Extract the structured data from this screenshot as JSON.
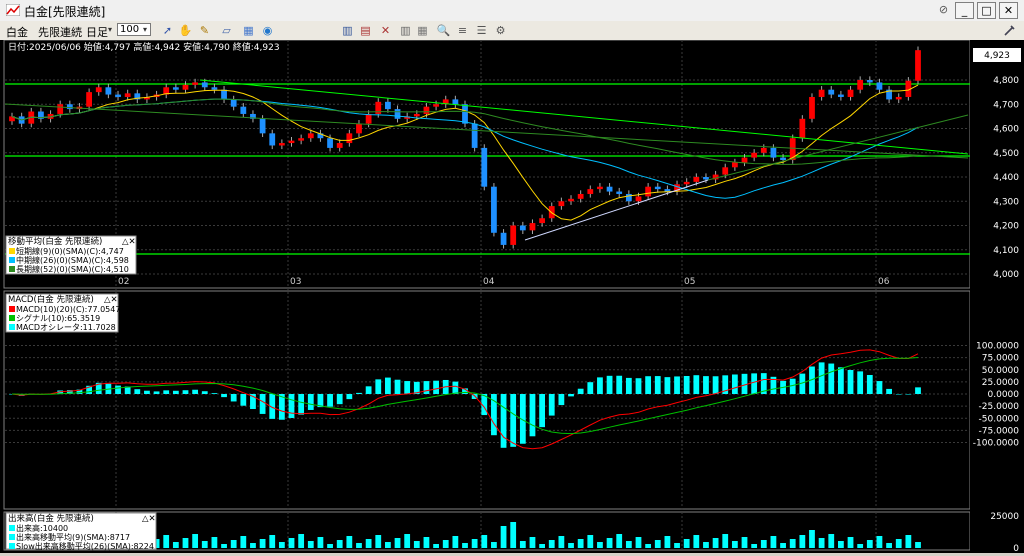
{
  "window": {
    "title": "白金[先限連続]",
    "buttons": {
      "pin": "⊘",
      "minimize": "_",
      "maximize": "□",
      "close": "✕"
    }
  },
  "toolbar": {
    "menus": [
      "白金",
      "先限連続",
      "日足"
    ],
    "zoom_value": "100",
    "icons": [
      "cursor-icon",
      "hand-icon",
      "pencil-icon",
      "eraser-icon",
      "grid-icon",
      "globe-icon",
      "bar-chart-icon",
      "candle-icon",
      "cross-icon",
      "list-icon",
      "table-icon",
      "magnify-icon",
      "rows-icon",
      "cols-icon",
      "settings-icon"
    ]
  },
  "price_panel": {
    "info": "日付:2025/06/06  始値:4,797  高値:4,942  安値:4,790  終値:4,923",
    "last_price": "4,923",
    "y_labels": [
      "4,800",
      "4,700",
      "4,600",
      "4,500",
      "4,400",
      "4,300",
      "4,200",
      "4,100",
      "4,000"
    ],
    "x_labels": [
      "02",
      "03",
      "04",
      "05",
      "06"
    ],
    "legend_title": "移動平均(白金 先限連続)",
    "legend_items": [
      "短期線(9)(0)(SMA)(C):4,747",
      "中期線(26)(0)(SMA)(C):4,598",
      "長期線(52)(0)(SMA)(C):4,510"
    ]
  },
  "macd_panel": {
    "legend_title": "MACD(白金 先限連続)",
    "legend_items": [
      "MACD(10)(20)(C):77.0547",
      "シグナル(10):65.3519",
      "MACDオシレータ:11.7028"
    ],
    "y_labels": [
      "100.0000",
      "75.0000",
      "50.0000",
      "25.0000",
      "0.0000",
      "-25.0000",
      "-50.0000",
      "-75.0000",
      "-100.0000"
    ]
  },
  "volume_panel": {
    "legend_title": "出来高(白金 先限連続)",
    "legend_items": [
      "出来高:10400",
      "出来高移動平均(9)(SMA):8717",
      "Slow出来高移動平均(26)(SMA):8224"
    ],
    "y_labels": [
      "25000",
      "0"
    ]
  },
  "colors": {
    "up": "#ff0000",
    "down": "#1e90ff",
    "short_ma": "#ffd700",
    "mid_ma": "#00bfff",
    "long_ma": "#2e8b22",
    "hline": "#00ff00",
    "macd": "#ff0000",
    "signal": "#00c000",
    "osc": "#00ffff"
  }
}
